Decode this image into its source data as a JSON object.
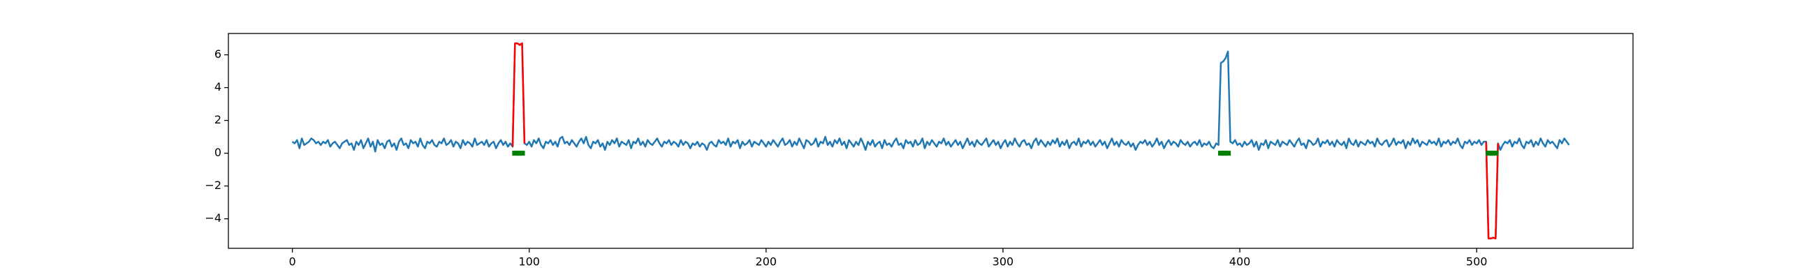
{
  "chart_data": {
    "type": "line",
    "xlim": [
      -27,
      566
    ],
    "ylim": [
      -5.8,
      7.3
    ],
    "xticks": [
      0,
      100,
      200,
      300,
      400,
      500
    ],
    "yticks": [
      {
        "value": -4,
        "label": "−4"
      },
      {
        "value": -2,
        "label": "−2"
      },
      0,
      2,
      4,
      6
    ],
    "series": [
      {
        "color": "#1f77b4",
        "values": [
          0.7,
          0.6,
          0.8,
          0.3,
          0.9,
          0.5,
          0.6,
          0.7,
          0.9,
          0.8,
          0.6,
          0.7,
          0.5,
          0.7,
          0.6,
          0.8,
          0.4,
          0.6,
          0.7,
          0.5,
          0.3,
          0.6,
          0.7,
          0.8,
          0.5,
          0.6,
          0.2,
          0.7,
          0.5,
          0.8,
          0.3,
          0.6,
          0.9,
          0.4,
          0.7,
          0.1,
          0.8,
          0.5,
          0.6,
          0.3,
          0.7,
          0.8,
          0.4,
          0.6,
          0.2,
          0.7,
          0.9,
          0.5,
          0.6,
          0.3,
          0.8,
          0.6,
          0.7,
          0.4,
          0.9,
          0.5,
          0.3,
          0.7,
          0.6,
          0.8,
          0.5,
          0.4,
          0.7,
          0.6,
          0.9,
          0.5,
          0.6,
          0.8,
          0.4,
          0.7,
          0.6,
          0.3,
          0.8,
          0.5,
          0.7,
          0.6,
          0.4,
          0.9,
          0.5,
          0.6,
          0.7,
          0.5,
          0.8,
          0.4,
          0.6,
          0.7,
          0.3,
          0.6,
          0.8,
          0.5,
          0.7,
          0.4,
          0.6,
          0.4,
          6.7,
          6.7,
          6.6,
          6.7,
          0.6,
          0.5,
          0.7,
          0.4,
          0.8,
          0.6,
          0.9,
          0.5,
          0.3,
          0.7,
          0.6,
          0.8,
          0.5,
          0.7,
          0.4,
          0.9,
          1.0,
          0.6,
          0.7,
          0.5,
          0.8,
          0.6,
          0.4,
          0.7,
          0.9,
          0.6,
          1.0,
          0.5,
          0.3,
          0.7,
          0.6,
          0.8,
          0.4,
          0.6,
          0.2,
          0.7,
          0.5,
          0.8,
          0.6,
          0.9,
          0.4,
          0.7,
          0.6,
          0.5,
          0.8,
          0.3,
          0.7,
          0.6,
          0.9,
          0.5,
          0.7,
          0.4,
          0.8,
          0.6,
          0.5,
          0.7,
          0.9,
          0.6,
          0.4,
          0.7,
          0.6,
          0.8,
          0.5,
          0.7,
          0.6,
          0.4,
          0.8,
          0.5,
          0.7,
          0.6,
          0.3,
          0.6,
          0.5,
          0.7,
          0.4,
          0.6,
          0.5,
          0.2,
          0.6,
          0.7,
          0.5,
          0.4,
          0.8,
          0.6,
          0.7,
          0.5,
          0.9,
          0.4,
          0.7,
          0.6,
          0.8,
          0.3,
          0.7,
          0.5,
          0.6,
          0.8,
          0.4,
          0.7,
          0.6,
          0.5,
          0.8,
          0.6,
          0.4,
          0.7,
          0.5,
          0.8,
          0.6,
          0.4,
          0.7,
          0.9,
          0.5,
          0.6,
          0.8,
          0.4,
          0.7,
          0.5,
          0.9,
          0.6,
          0.3,
          0.8,
          0.7,
          0.5,
          0.6,
          0.9,
          0.4,
          0.7,
          0.6,
          1.0,
          0.5,
          0.7,
          0.4,
          0.8,
          0.6,
          0.9,
          0.5,
          0.7,
          0.3,
          0.8,
          0.6,
          0.4,
          0.7,
          0.5,
          0.9,
          0.6,
          0.2,
          0.7,
          0.5,
          0.8,
          0.4,
          0.6,
          0.7,
          0.3,
          0.8,
          0.5,
          0.6,
          0.4,
          0.7,
          0.9,
          0.5,
          0.6,
          0.3,
          0.8,
          0.6,
          0.7,
          0.4,
          0.8,
          0.5,
          0.6,
          0.9,
          0.3,
          0.7,
          0.5,
          0.8,
          0.6,
          0.4,
          0.7,
          0.6,
          0.9,
          0.5,
          0.7,
          0.4,
          0.6,
          0.8,
          0.5,
          0.7,
          0.3,
          0.6,
          0.9,
          0.5,
          0.7,
          0.4,
          0.8,
          0.6,
          0.5,
          0.7,
          0.9,
          0.4,
          0.6,
          0.8,
          0.5,
          0.7,
          0.3,
          0.6,
          0.8,
          0.4,
          0.7,
          0.5,
          0.9,
          0.6,
          0.4,
          0.7,
          0.8,
          0.5,
          0.6,
          0.3,
          0.7,
          0.9,
          0.5,
          0.8,
          0.6,
          0.4,
          0.7,
          0.5,
          0.8,
          0.6,
          0.9,
          0.4,
          0.7,
          0.5,
          0.8,
          0.3,
          0.6,
          0.7,
          0.5,
          0.9,
          0.4,
          0.7,
          0.6,
          0.8,
          0.5,
          0.7,
          0.4,
          0.6,
          0.8,
          0.5,
          0.7,
          0.3,
          0.6,
          0.9,
          0.5,
          0.7,
          0.4,
          0.8,
          0.6,
          0.5,
          0.7,
          0.4,
          0.6,
          0.2,
          0.5,
          0.7,
          0.6,
          0.8,
          0.5,
          0.7,
          0.4,
          0.6,
          0.9,
          0.5,
          0.7,
          0.3,
          0.6,
          0.8,
          0.5,
          0.7,
          0.6,
          0.4,
          0.8,
          0.6,
          0.5,
          0.7,
          0.4,
          0.6,
          0.7,
          0.5,
          0.8,
          0.4,
          0.6,
          0.5,
          0.7,
          0.4,
          0.3,
          0.6,
          0.5,
          5.5,
          5.6,
          5.8,
          6.2,
          0.7,
          0.6,
          0.8,
          0.5,
          0.6,
          0.4,
          0.7,
          0.5,
          0.6,
          0.8,
          0.4,
          0.7,
          0.2,
          0.6,
          0.5,
          0.8,
          0.3,
          0.7,
          0.6,
          0.5,
          0.8,
          0.4,
          0.7,
          0.6,
          0.5,
          0.8,
          0.6,
          0.4,
          0.7,
          0.9,
          0.5,
          0.6,
          0.3,
          0.8,
          0.7,
          0.5,
          0.6,
          0.9,
          0.4,
          0.7,
          0.6,
          0.8,
          0.5,
          0.7,
          0.4,
          0.8,
          0.6,
          0.5,
          0.7,
          0.3,
          0.9,
          0.6,
          0.5,
          0.8,
          0.4,
          0.7,
          0.6,
          0.5,
          0.8,
          0.6,
          0.7,
          0.4,
          0.9,
          0.6,
          0.5,
          0.7,
          0.8,
          0.4,
          0.6,
          0.9,
          0.5,
          0.7,
          0.6,
          0.8,
          0.3,
          0.7,
          0.5,
          0.9,
          0.6,
          0.8,
          0.4,
          0.7,
          0.6,
          0.5,
          0.8,
          0.6,
          0.7,
          0.5,
          0.9,
          0.4,
          0.7,
          0.6,
          0.8,
          0.5,
          0.7,
          0.6,
          0.9,
          0.5,
          0.3,
          0.7,
          0.6,
          0.8,
          0.5,
          0.7,
          0.6,
          0.8,
          0.5,
          0.7,
          0.7,
          -5.2,
          -5.2,
          -5.15,
          -5.2,
          0.6,
          0.2,
          0.5,
          0.7,
          0.6,
          0.8,
          0.4,
          0.7,
          0.6,
          0.9,
          0.5,
          0.3,
          0.7,
          0.6,
          0.8,
          0.4,
          0.7,
          0.5,
          0.9,
          0.6,
          0.4,
          0.8,
          0.6,
          0.7,
          0.5,
          0.3,
          0.8,
          0.6,
          0.9,
          0.7,
          0.5
        ]
      },
      {
        "color": "#ff0000",
        "x": [
          93,
          94,
          95,
          96,
          97,
          98
        ],
        "values": [
          0.4,
          6.7,
          6.7,
          6.6,
          6.7,
          0.6
        ]
      },
      {
        "color": "#ff0000",
        "x": [
          504,
          505,
          506,
          507,
          508,
          509
        ],
        "values": [
          0.7,
          -5.2,
          -5.2,
          -5.15,
          -5.2,
          0.6
        ]
      },
      {
        "color": "#008000",
        "marker": "square",
        "x": [
          94,
          95,
          96,
          97,
          392,
          393,
          394,
          395,
          505,
          506,
          507,
          508
        ],
        "values": [
          0,
          0,
          0,
          0,
          0,
          0,
          0,
          0,
          0,
          0,
          0,
          0
        ]
      }
    ]
  }
}
